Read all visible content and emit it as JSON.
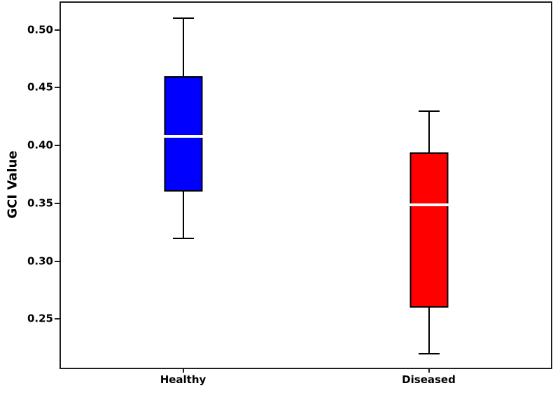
{
  "figure": {
    "background": "#ffffff",
    "spine_color": "#1f1f1f"
  },
  "chart_data": {
    "type": "boxplot",
    "title": "",
    "xlabel": "",
    "ylabel": "GCI Value",
    "categories": [
      "Healthy",
      "Diseased"
    ],
    "yticks": [
      0.25,
      0.3,
      0.35,
      0.4,
      0.45,
      0.5
    ],
    "ytick_labels": [
      "0.25",
      "0.30",
      "0.35",
      "0.40",
      "0.45",
      "0.50"
    ],
    "ylim": [
      0.208,
      0.524
    ],
    "grid": false,
    "legend": null,
    "box_edge_color": "#000000",
    "median_color": "#ffffff",
    "whisker_color": "#000000",
    "series": [
      {
        "name": "Healthy",
        "color": "#0000ff",
        "whisker_low": 0.32,
        "q1": 0.36,
        "median": 0.408,
        "q3": 0.46,
        "whisker_high": 0.51
      },
      {
        "name": "Diseased",
        "color": "#ff0000",
        "whisker_low": 0.22,
        "q1": 0.26,
        "median": 0.349,
        "q3": 0.394,
        "whisker_high": 0.43
      }
    ]
  }
}
